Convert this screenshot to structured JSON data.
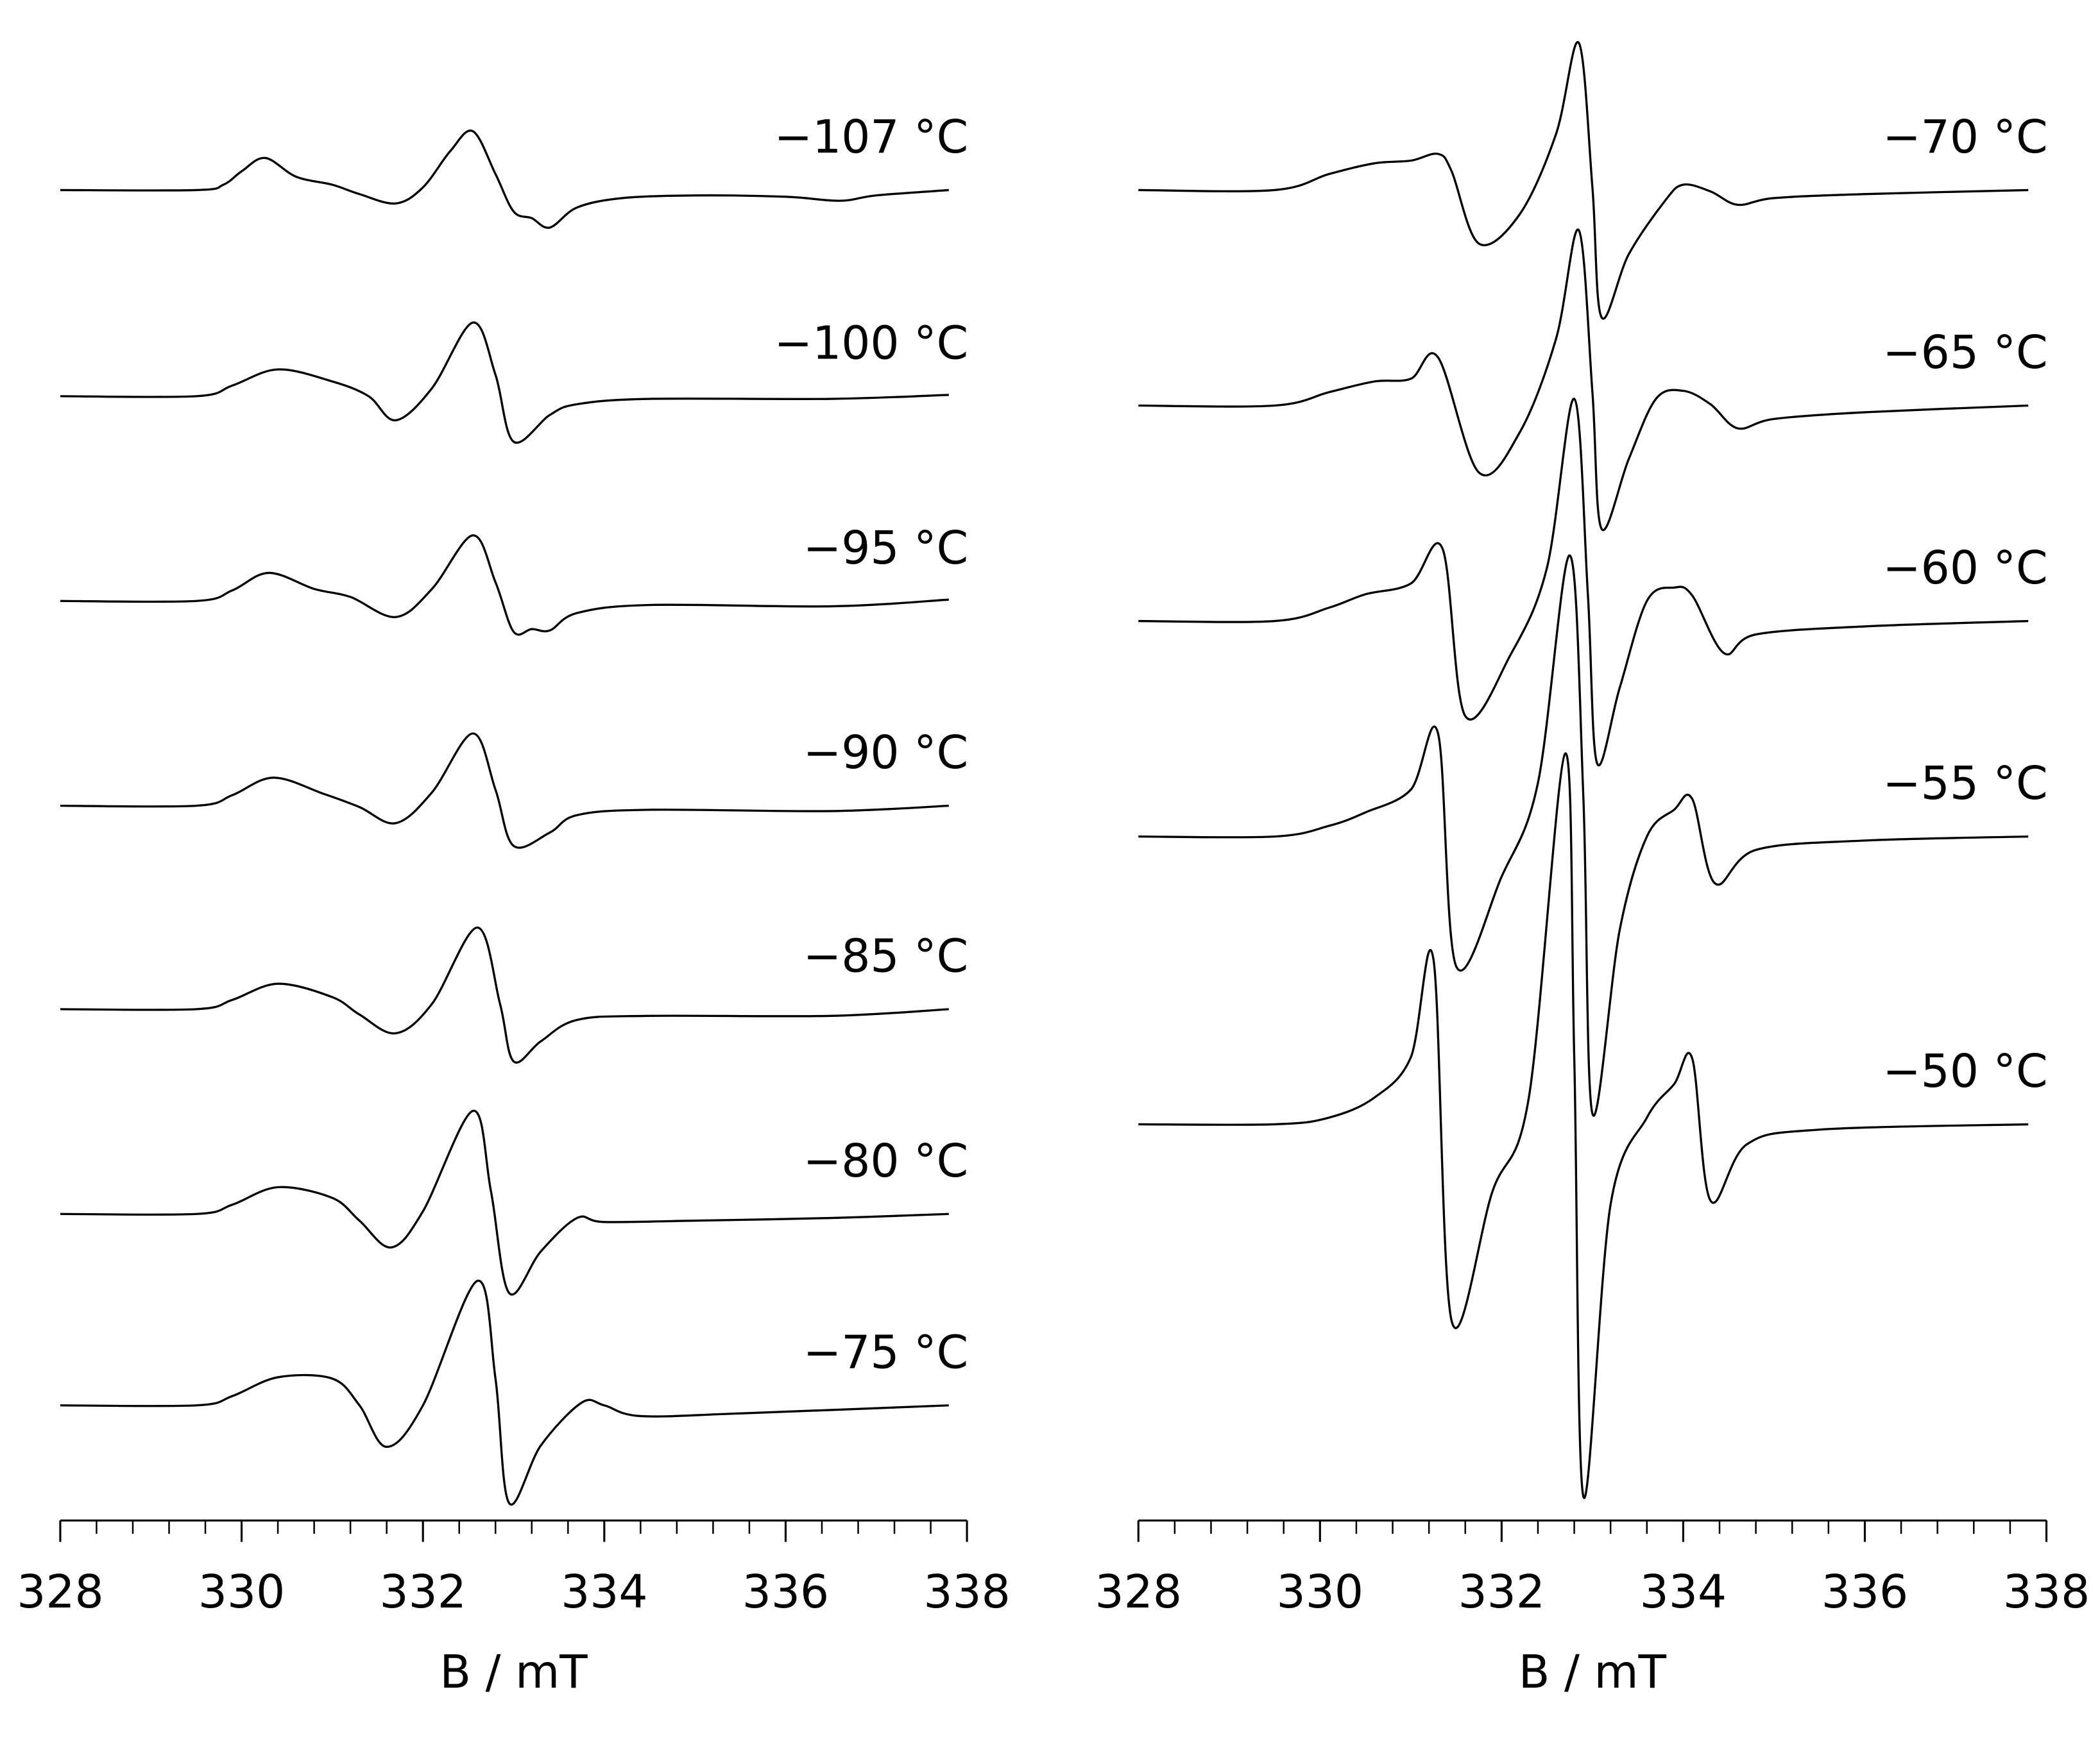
{
  "chart_data": [
    {
      "type": "line",
      "xlabel": "B / mT",
      "xlim": [
        328,
        338
      ],
      "xticks": [
        328,
        330,
        332,
        334,
        336,
        338
      ],
      "xminorticks": [
        328.4,
        328.8,
        329.2,
        329.6,
        330.4,
        330.8,
        331.2,
        331.6,
        332.4,
        332.8,
        333.2,
        333.6,
        334.4,
        334.8,
        335.2,
        335.6,
        336.4,
        336.8,
        337.2,
        337.6
      ],
      "color": "#000000",
      "series": [
        {
          "name": "−107 °C",
          "x": [
            328,
            329.5,
            329.8,
            330.0,
            330.26,
            330.6,
            331.0,
            331.3,
            331.7,
            332.0,
            332.3,
            332.55,
            332.8,
            333.0,
            333.2,
            333.4,
            333.7,
            334.2,
            335,
            336,
            336.6,
            337,
            337.8
          ],
          "values": [
            0,
            0,
            4,
            14,
            24,
            10,
            4,
            -3,
            -10,
            2,
            29,
            44,
            12,
            -16,
            -21,
            -28,
            -13,
            -6,
            -4,
            -5,
            -8,
            -4,
            0
          ]
        },
        {
          "name": "−100 °C",
          "x": [
            328,
            329.5,
            329.9,
            330.4,
            331.0,
            331.4,
            331.7,
            332.1,
            332.55,
            332.8,
            333.0,
            333.4,
            333.7,
            334.5,
            336.5,
            337.8
          ],
          "values": [
            0,
            0,
            8,
            20,
            11,
            0,
            -18,
            6,
            55,
            16,
            -34,
            -14,
            -6,
            -2,
            -2,
            1
          ]
        },
        {
          "name": "−95 °C",
          "x": [
            328,
            329.5,
            329.9,
            330.3,
            330.8,
            331.2,
            331.7,
            332.1,
            332.55,
            332.8,
            333.0,
            333.2,
            333.4,
            333.7,
            334.5,
            336.5,
            337.8
          ],
          "values": [
            0,
            0,
            8,
            21,
            9,
            3,
            -12,
            9,
            49,
            14,
            -23,
            -21,
            -22,
            -9,
            -3,
            -4,
            1
          ]
        },
        {
          "name": "−90 °C",
          "x": [
            328,
            329.5,
            329.9,
            330.35,
            330.9,
            331.3,
            331.7,
            332.1,
            332.55,
            332.8,
            333.0,
            333.4,
            333.7,
            334.5,
            336.5,
            337.8
          ],
          "values": [
            0,
            0,
            8,
            21,
            9,
            -1,
            -13,
            10,
            54,
            12,
            -30,
            -20,
            -7,
            -3,
            -4,
            0
          ]
        },
        {
          "name": "−85 °C",
          "x": [
            328,
            329.5,
            329.9,
            330.4,
            331.0,
            331.3,
            331.7,
            332.1,
            332.6,
            332.85,
            333.0,
            333.3,
            333.7,
            334.5,
            336.5,
            337.8
          ],
          "values": [
            0,
            0,
            7,
            19,
            9,
            -4,
            -18,
            4,
            61,
            4,
            -39,
            -24,
            -8,
            -5,
            -5,
            0
          ]
        },
        {
          "name": "−80 °C",
          "x": [
            328,
            329.5,
            329.9,
            330.4,
            331.0,
            331.3,
            331.65,
            332.0,
            332.55,
            332.75,
            332.95,
            333.3,
            333.7,
            334.0,
            335,
            336.5,
            337.8
          ],
          "values": [
            0,
            0,
            7,
            20,
            12,
            -5,
            -25,
            2,
            77,
            17,
            -59,
            -28,
            -3,
            -6,
            -5,
            -3,
            0
          ]
        },
        {
          "name": "−75 °C",
          "x": [
            328,
            329.5,
            329.9,
            330.4,
            331.0,
            331.3,
            331.6,
            332.0,
            332.6,
            332.8,
            332.95,
            333.3,
            333.75,
            334.0,
            334.4,
            335.5,
            337.8
          ],
          "values": [
            0,
            0,
            7,
            21,
            20,
            0,
            -31,
            0,
            93,
            20,
            -73,
            -30,
            2,
            0,
            -8,
            -6,
            0
          ]
        }
      ]
    },
    {
      "type": "line",
      "xlabel": "B / mT",
      "xlim": [
        328,
        338
      ],
      "xticks": [
        328,
        330,
        332,
        334,
        336,
        338
      ],
      "xminorticks": [
        328.4,
        328.8,
        329.2,
        329.6,
        330.4,
        330.8,
        331.2,
        331.6,
        332.4,
        332.8,
        333.2,
        333.6,
        334.4,
        334.8,
        335.2,
        335.6,
        336.4,
        336.8,
        337.2,
        337.6
      ],
      "color": "#000000",
      "series": [
        {
          "name": "−70 °C",
          "x": [
            328,
            329.5,
            330.1,
            330.6,
            331.0,
            331.3,
            331.45,
            331.75,
            332.2,
            332.6,
            332.85,
            333.0,
            333.1,
            333.4,
            333.8,
            334.0,
            334.3,
            334.6,
            335.0,
            336,
            337.8
          ],
          "values": [
            0,
            0,
            12,
            20,
            22,
            27,
            14,
            -40,
            -18,
            42,
            110,
            2,
            -95,
            -48,
            -8,
            4,
            -1,
            -11,
            -6,
            -3,
            0
          ]
        },
        {
          "name": "−65 °C",
          "x": [
            328,
            329.5,
            330.1,
            330.6,
            331.0,
            331.3,
            331.75,
            332.2,
            332.6,
            332.85,
            333.0,
            333.1,
            333.4,
            333.7,
            334.0,
            334.3,
            334.6,
            335.0,
            336,
            337.8
          ],
          "values": [
            0,
            0,
            10,
            18,
            20,
            36,
            -50,
            -20,
            50,
            131,
            10,
            -92,
            -40,
            5,
            11,
            1,
            -17,
            -10,
            -5,
            0
          ]
        },
        {
          "name": "−60 °C",
          "x": [
            328,
            329.5,
            330.1,
            330.5,
            331.0,
            331.35,
            331.6,
            332.1,
            332.5,
            332.8,
            332.95,
            333.05,
            333.3,
            333.6,
            333.9,
            334.1,
            334.45,
            334.8,
            336,
            337.8
          ],
          "values": [
            0,
            0,
            10,
            20,
            28,
            54,
            -71,
            -25,
            40,
            166,
            20,
            -106,
            -50,
            15,
            25,
            19,
            -24,
            -10,
            -4,
            0
          ]
        },
        {
          "name": "−55 °C",
          "x": [
            328,
            329.5,
            330.1,
            330.5,
            331.0,
            331.3,
            331.5,
            332.0,
            332.4,
            332.75,
            332.9,
            333.0,
            333.3,
            333.6,
            333.9,
            334.1,
            334.35,
            334.8,
            336,
            337.8
          ],
          "values": [
            0,
            0,
            8,
            18,
            35,
            77,
            -97,
            -30,
            40,
            210,
            30,
            -207,
            -70,
            0,
            20,
            28,
            -35,
            -10,
            -3,
            0
          ]
        },
        {
          "name": "−50 °C",
          "x": [
            328,
            329.5,
            330.1,
            330.6,
            331.0,
            331.25,
            331.45,
            331.9,
            332.3,
            332.7,
            332.8,
            332.9,
            333.2,
            333.6,
            333.9,
            334.1,
            334.3,
            334.7,
            335.5,
            337.8
          ],
          "values": [
            0,
            0,
            5,
            20,
            50,
            123,
            -147,
            -50,
            20,
            277,
            50,
            -278,
            -60,
            5,
            30,
            49,
            -57,
            -15,
            -4,
            0
          ]
        }
      ]
    }
  ]
}
